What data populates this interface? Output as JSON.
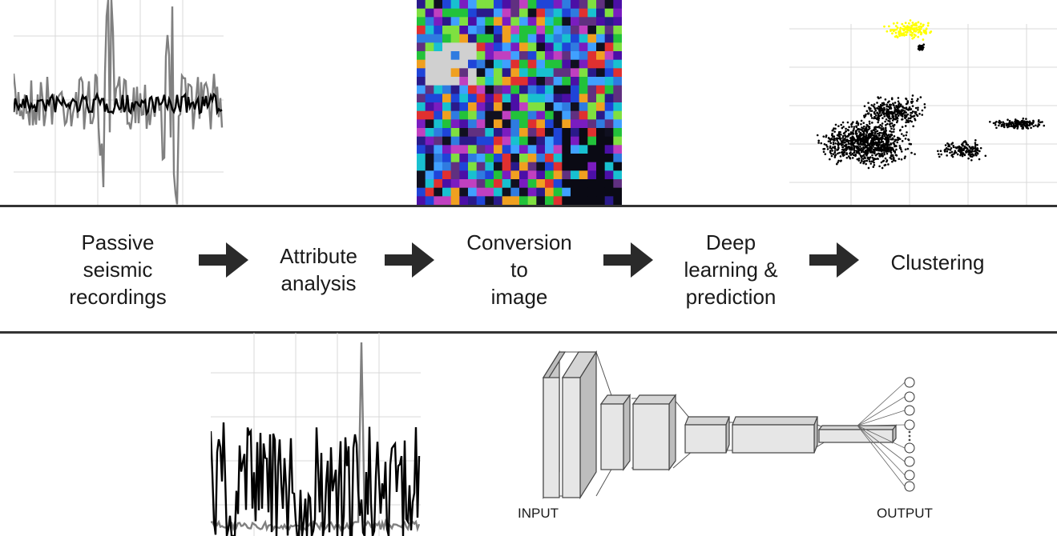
{
  "pipeline": {
    "steps": [
      {
        "lines": [
          "Passive",
          "seismic",
          "recordings"
        ]
      },
      {
        "lines": [
          "Attribute",
          "analysis"
        ]
      },
      {
        "lines": [
          "Conversion",
          "to",
          "image"
        ]
      },
      {
        "lines": [
          "Deep",
          "learning &",
          "prediction"
        ]
      },
      {
        "lines": [
          "Clustering"
        ]
      }
    ]
  },
  "cnn": {
    "input_label": "INPUT",
    "output_label": "OUTPUT"
  },
  "colors": {
    "line_dark": "#000000",
    "line_gray": "#808080",
    "grid": "#d9d9d9",
    "cluster_main": "#000000",
    "cluster_small": "#ffff00",
    "separator": "#333333"
  }
}
